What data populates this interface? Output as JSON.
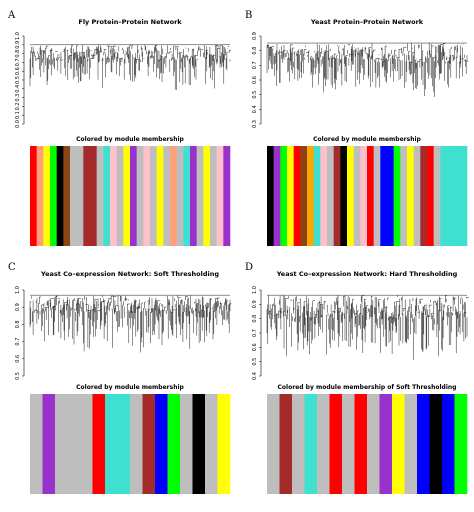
{
  "panels": [
    {
      "letter": "A",
      "title": "Fly Protein–Protein Network",
      "subtitle": "Colored by module membership",
      "y_ticks": [
        "1.0",
        "0.9",
        "0.8",
        "0.7",
        "0.6",
        "0.5",
        "0.4",
        "0.3",
        "0.2",
        "0.1",
        "0.0"
      ],
      "colors": [
        "#ff0000",
        "#ffa07a",
        "#ffff00",
        "#00ff00",
        "#000000",
        "#8b4513",
        "#bebebe",
        "#bebebe",
        "#a52a2a",
        "#a52a2a",
        "#bebebe",
        "#40e0d0",
        "#ffc0cb",
        "#bebebe",
        "#ffff00",
        "#9932cc",
        "#bebebe",
        "#ffc0cb",
        "#bebebe",
        "#ffff00",
        "#bebebe",
        "#ffa07a",
        "#bebebe",
        "#40e0d0",
        "#9932cc",
        "#bebebe",
        "#ffff00",
        "#bebebe",
        "#ffc0cb",
        "#9932cc"
      ]
    },
    {
      "letter": "B",
      "title": "Yeast Protein–Protein Network",
      "subtitle": "Colored by module membership",
      "y_ticks": [
        "0.9",
        "0.8",
        "0.7",
        "0.6",
        "0.5",
        "0.4",
        "0.3"
      ],
      "colors": [
        "#000000",
        "#9932cc",
        "#00ff00",
        "#ffff00",
        "#ff0000",
        "#8b4513",
        "#ffa500",
        "#40e0d0",
        "#ffc0cb",
        "#bebebe",
        "#a52a2a",
        "#000000",
        "#ffff00",
        "#bebebe",
        "#ffc0cb",
        "#ff0000",
        "#bebebe",
        "#0000ff",
        "#0000ff",
        "#00ff00",
        "#bebebe",
        "#ffff00",
        "#bebebe",
        "#a52a2a",
        "#ff0000",
        "#bebebe",
        "#40e0d0",
        "#40e0d0",
        "#40e0d0",
        "#40e0d0"
      ]
    },
    {
      "letter": "C",
      "title": "Yeast Co–expression Network: Soft Thresholding",
      "subtitle": "Colored by module membership",
      "y_ticks": [
        "1.0",
        "0.9",
        "0.8",
        "0.7",
        "0.6",
        "0.5"
      ],
      "colors": [
        "#bebebe",
        "#9932cc",
        "#bebebe",
        "#bebebe",
        "#bebebe",
        "#ff0000",
        "#40e0d0",
        "#40e0d0",
        "#bebebe",
        "#a52a2a",
        "#0000ff",
        "#00ff00",
        "#bebebe",
        "#000000",
        "#bebebe",
        "#ffff00"
      ]
    },
    {
      "letter": "D",
      "title": "Yeast Co–expression Network: Hard Thresholding",
      "subtitle": "Colored by module membership of Soft Thresholding",
      "y_ticks": [
        "1.0",
        "0.9",
        "0.8",
        "0.7",
        "0.6",
        "0.5",
        "0.4"
      ],
      "colors": [
        "#bebebe",
        "#a52a2a",
        "#bebebe",
        "#40e0d0",
        "#bebebe",
        "#ff0000",
        "#bebebe",
        "#ff0000",
        "#bebebe",
        "#9932cc",
        "#ffff00",
        "#bebebe",
        "#0000ff",
        "#000000",
        "#0000ff",
        "#00ff00"
      ]
    }
  ]
}
